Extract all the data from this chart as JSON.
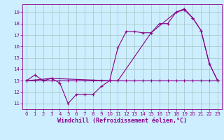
{
  "background_color": "#cceeff",
  "grid_color": "#aacccc",
  "line_color": "#880088",
  "xlabel": "Windchill (Refroidissement éolien,°C)",
  "xlabel_fontsize": 6.0,
  "yticks": [
    11,
    12,
    13,
    14,
    15,
    16,
    17,
    18,
    19
  ],
  "xticks": [
    0,
    1,
    2,
    3,
    4,
    5,
    6,
    7,
    8,
    9,
    10,
    11,
    12,
    13,
    14,
    15,
    16,
    17,
    18,
    19,
    20,
    21,
    22,
    23
  ],
  "ylim": [
    10.5,
    19.7
  ],
  "xlim": [
    -0.5,
    23.5
  ],
  "series1_x": [
    0,
    1,
    2,
    3,
    4,
    5,
    6,
    7,
    8,
    9,
    10,
    11,
    12,
    13,
    14,
    15,
    16,
    17,
    18,
    19,
    20,
    21,
    22,
    23
  ],
  "series1_y": [
    13.0,
    13.5,
    13.0,
    13.2,
    12.8,
    11.0,
    11.8,
    11.8,
    11.8,
    12.5,
    13.0,
    15.9,
    17.3,
    17.3,
    17.2,
    17.2,
    18.0,
    18.0,
    19.0,
    19.3,
    18.5,
    17.4,
    14.5,
    13.0
  ],
  "series2_x": [
    0,
    1,
    2,
    3,
    4,
    5,
    6,
    7,
    8,
    9,
    10,
    11,
    12,
    13,
    14,
    15,
    16,
    17,
    18,
    19,
    20,
    21,
    22,
    23
  ],
  "series2_y": [
    13.0,
    13.0,
    13.0,
    13.0,
    13.0,
    13.0,
    13.0,
    13.0,
    13.0,
    13.0,
    13.0,
    13.0,
    13.0,
    13.0,
    13.0,
    13.0,
    13.0,
    13.0,
    13.0,
    13.0,
    13.0,
    13.0,
    13.0,
    13.0
  ],
  "series3_x": [
    0,
    3,
    10,
    11,
    15,
    18,
    19,
    20,
    21,
    22,
    23
  ],
  "series3_y": [
    13.0,
    13.2,
    13.0,
    13.0,
    17.2,
    19.0,
    19.2,
    18.5,
    17.4,
    14.5,
    13.0
  ]
}
